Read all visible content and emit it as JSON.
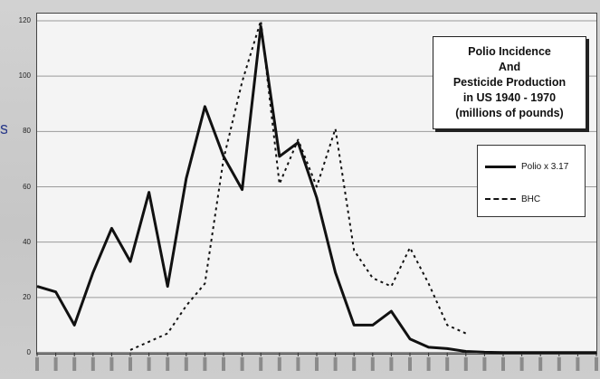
{
  "chart_data": {
    "type": "line",
    "title_lines": [
      "Polio Incidence",
      "And",
      "Pesticide Production",
      "in US 1940 - 1970",
      "(millions of pounds)"
    ],
    "xlabel": "",
    "ylabel": "",
    "ylim": [
      0,
      120
    ],
    "yticks": [
      "0",
      "20",
      "40",
      "60",
      "80",
      "100",
      "120"
    ],
    "xlim": [
      1940,
      1970
    ],
    "grid": true,
    "legend_position": "right",
    "x": [
      1940,
      1941,
      1942,
      1943,
      1944,
      1945,
      1946,
      1947,
      1948,
      1949,
      1950,
      1951,
      1952,
      1953,
      1954,
      1955,
      1956,
      1957,
      1958,
      1959,
      1960,
      1961,
      1962,
      1963,
      1964,
      1965,
      1966,
      1967,
      1968,
      1969,
      1970
    ],
    "series": [
      {
        "name": "Polio x 3.17",
        "style": "solid",
        "color": "#111111",
        "values": [
          24,
          22,
          10,
          29,
          45,
          33,
          58,
          24,
          63,
          89,
          71,
          59,
          118,
          71,
          76,
          56,
          29,
          10,
          10,
          15,
          5,
          2,
          1.5,
          0.5,
          0.2,
          0.1,
          0.1,
          0.1,
          0.1,
          0.1,
          0.1
        ]
      },
      {
        "name": "BHC",
        "style": "dotted",
        "color": "#111111",
        "values": [
          null,
          null,
          null,
          null,
          null,
          1,
          4,
          7,
          17,
          25,
          70,
          98,
          120,
          61,
          77,
          60,
          81,
          37,
          27,
          24,
          38,
          25,
          10,
          7,
          null,
          null,
          null,
          null,
          null,
          null,
          null
        ]
      }
    ]
  },
  "page": {
    "stray_text": "s"
  }
}
